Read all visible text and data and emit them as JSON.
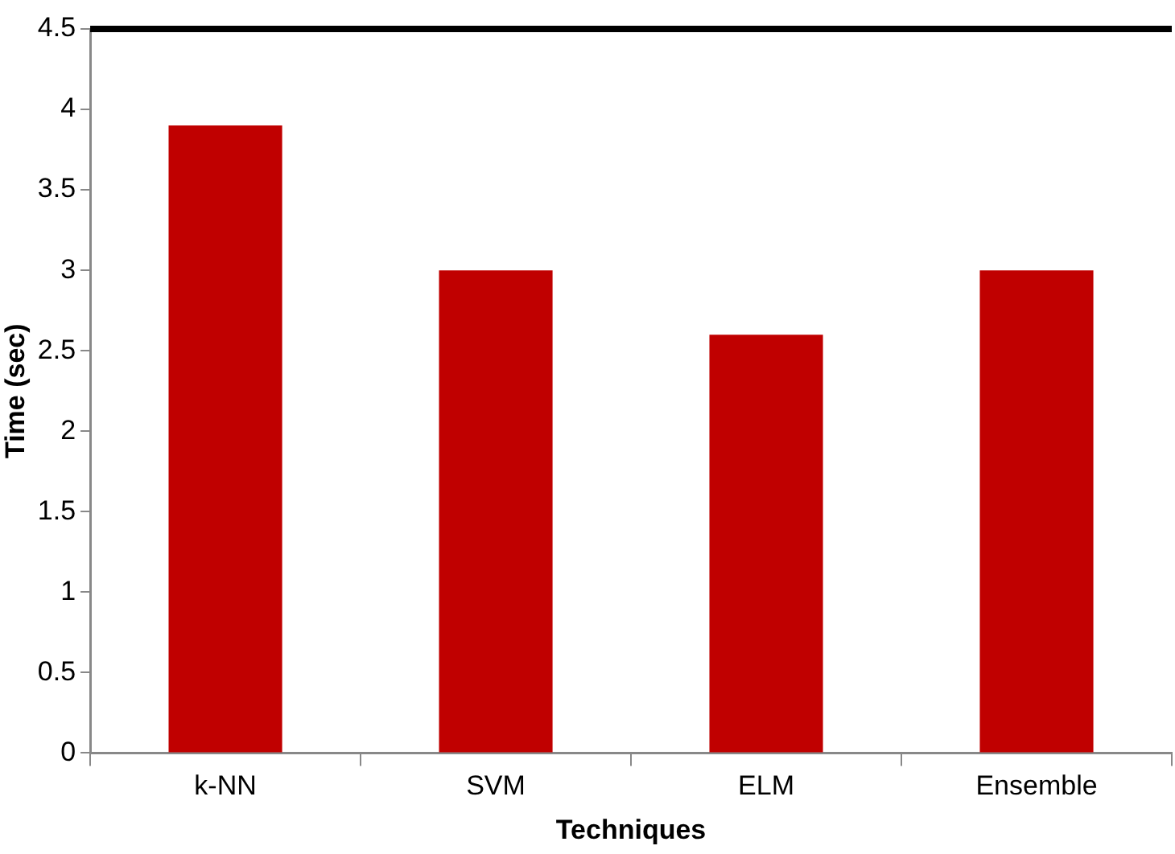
{
  "chart_data": {
    "type": "bar",
    "xlabel": "Techniques",
    "ylabel": "Time (sec)",
    "categories": [
      "k-NN",
      "SVM",
      "ELM",
      "Ensemble"
    ],
    "values": [
      3.9,
      3.0,
      2.6,
      3.0
    ],
    "color": "#c00000",
    "ylim": [
      0,
      4.5
    ],
    "yticks": [
      0,
      0.5,
      1,
      1.5,
      2,
      2.5,
      3,
      3.5,
      4,
      4.5
    ],
    "grid": false,
    "legend": false
  }
}
